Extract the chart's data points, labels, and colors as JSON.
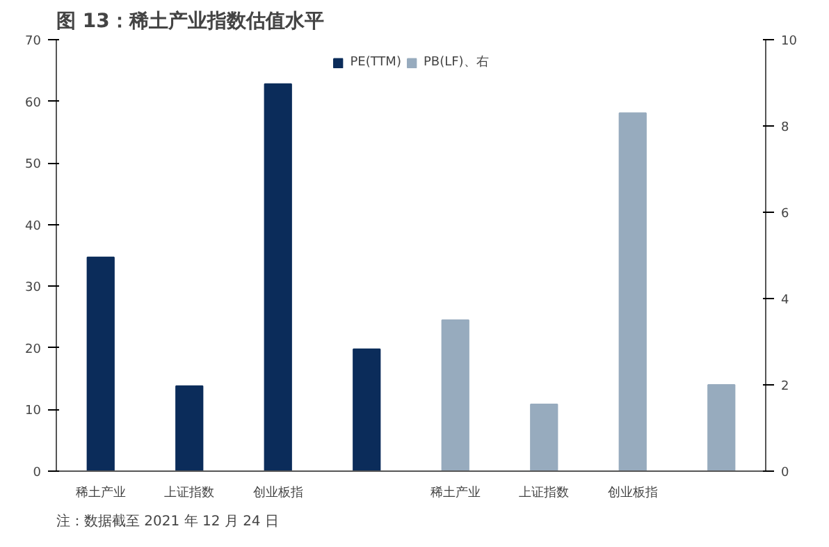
{
  "chart_data": {
    "type": "bar",
    "title": "图 13：稀土产业指数估值水平",
    "categories": [
      "稀土产业",
      "上证指数",
      "创业板指",
      null,
      "稀土产业",
      "上证指数",
      "创业板指",
      null
    ],
    "series": [
      {
        "name": "PE(TTM)",
        "color": "#0b2c5a",
        "values": [
          34.7,
          13.8,
          62.8,
          19.8,
          null,
          null,
          null,
          null
        ]
      },
      {
        "name": "PB(LF)、右",
        "color": "#97abbe",
        "axis": "y2",
        "values": [
          null,
          null,
          null,
          null,
          3.5,
          1.55,
          8.3,
          2.0
        ]
      }
    ],
    "ylim": [
      0,
      70
    ],
    "yticks": [
      0,
      10,
      20,
      30,
      40,
      50,
      60,
      70
    ],
    "y2lim": [
      0,
      10
    ],
    "y2ticks": [
      0,
      2,
      4,
      6,
      8,
      10
    ],
    "grid": false,
    "legend": "top",
    "annotations": [
      "注：数据截至 2021 年 12 月 24 日"
    ]
  }
}
